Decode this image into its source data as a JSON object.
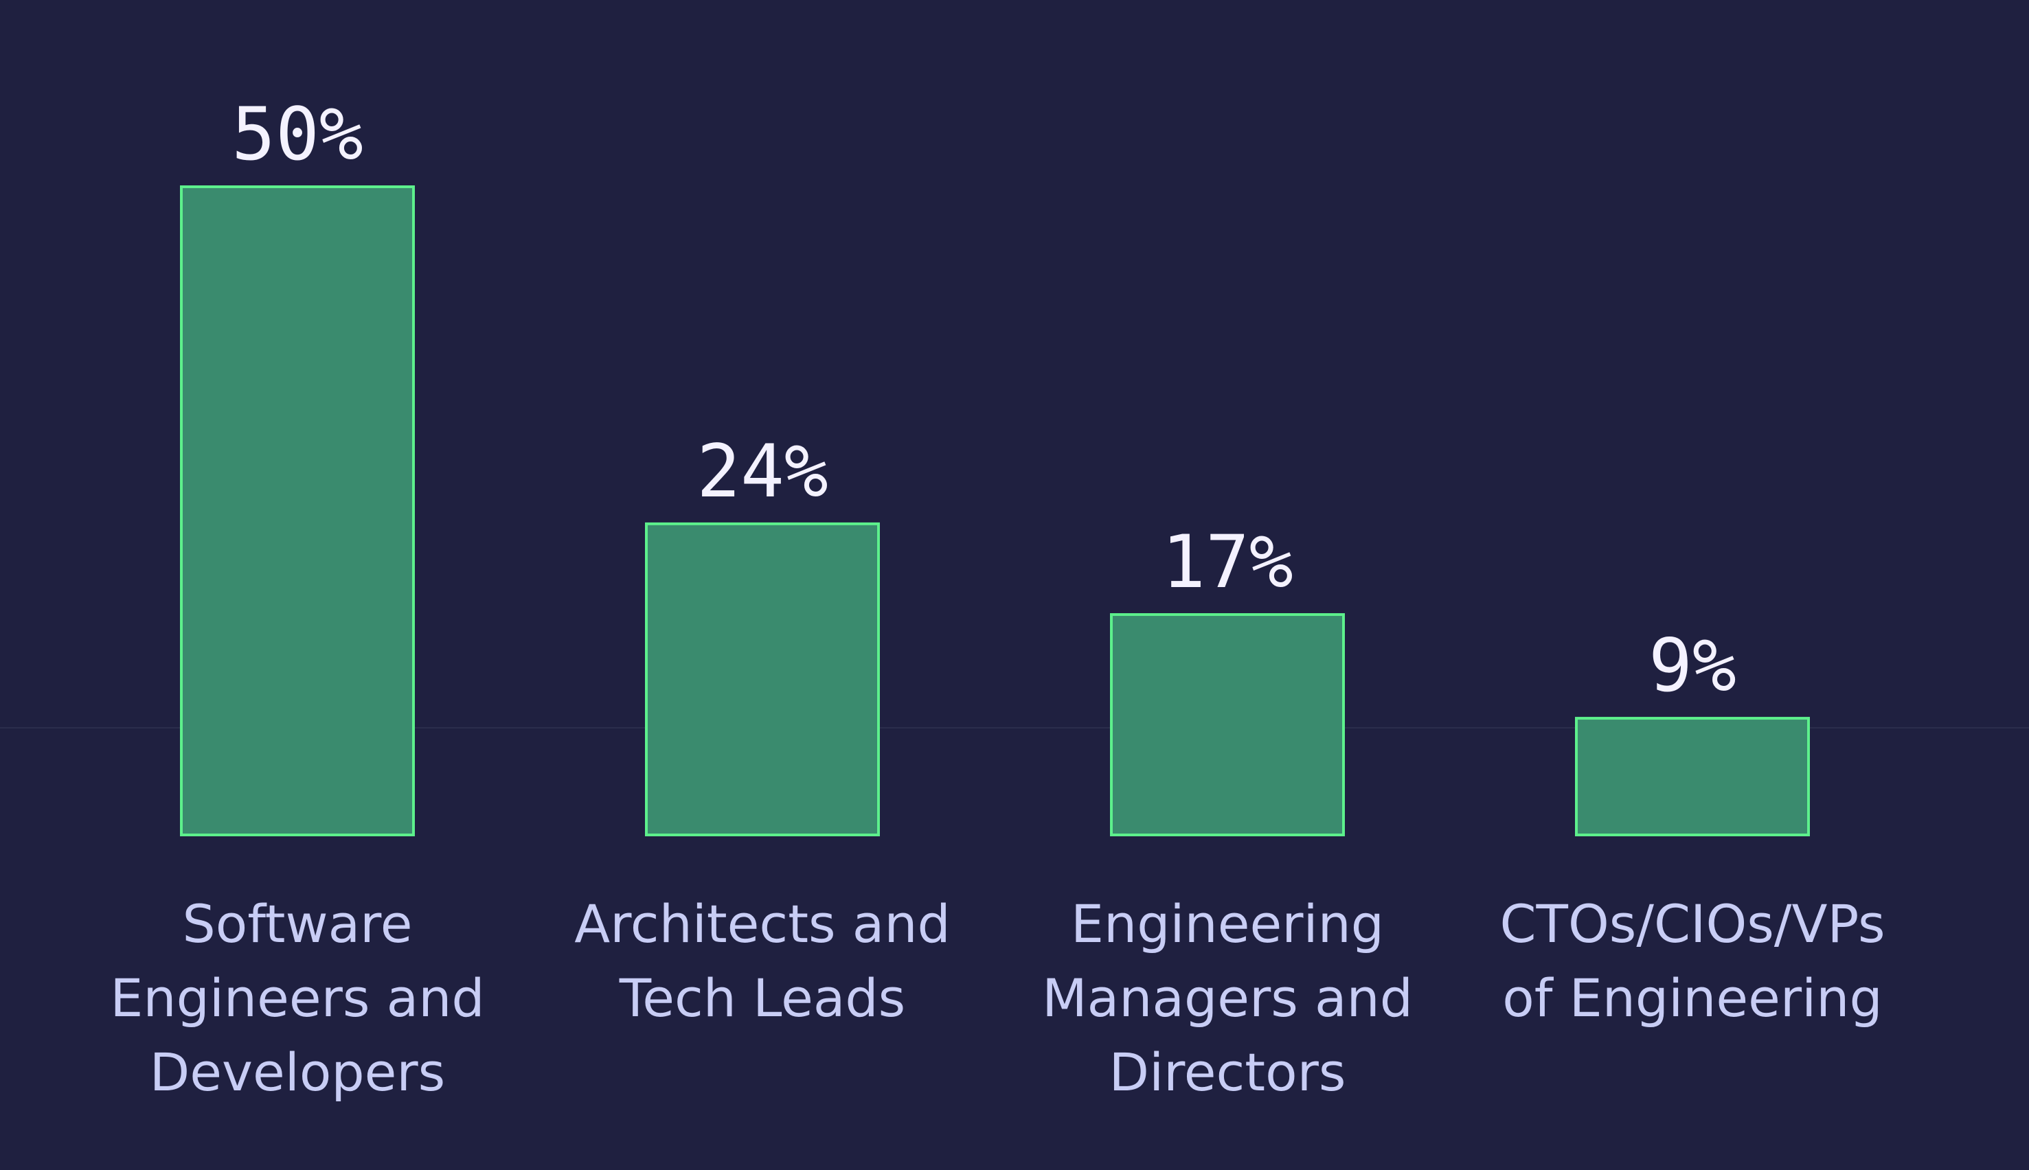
{
  "chart_data": {
    "type": "bar",
    "title": "",
    "xlabel": "",
    "ylabel": "",
    "ylim": [
      0,
      50
    ],
    "grid": false,
    "legend": "none",
    "categories": [
      [
        "Software",
        "Engineers and",
        "Developers"
      ],
      [
        "Architects and",
        "Tech Leads"
      ],
      [
        "Engineering",
        "Managers and",
        "Directors"
      ],
      [
        "CTOs/CIOs/VPs",
        "of Engineering"
      ]
    ],
    "values": [
      50,
      24,
      17,
      9
    ],
    "data_labels": [
      "50%",
      "24%",
      "17%",
      "9%"
    ]
  },
  "colors": {
    "background": "#1f2040",
    "bar_fill": "#3a8b6e",
    "bar_stroke": "#5df08c",
    "value_text": "#f4f2ff",
    "category_text": "#c8cdf5"
  }
}
